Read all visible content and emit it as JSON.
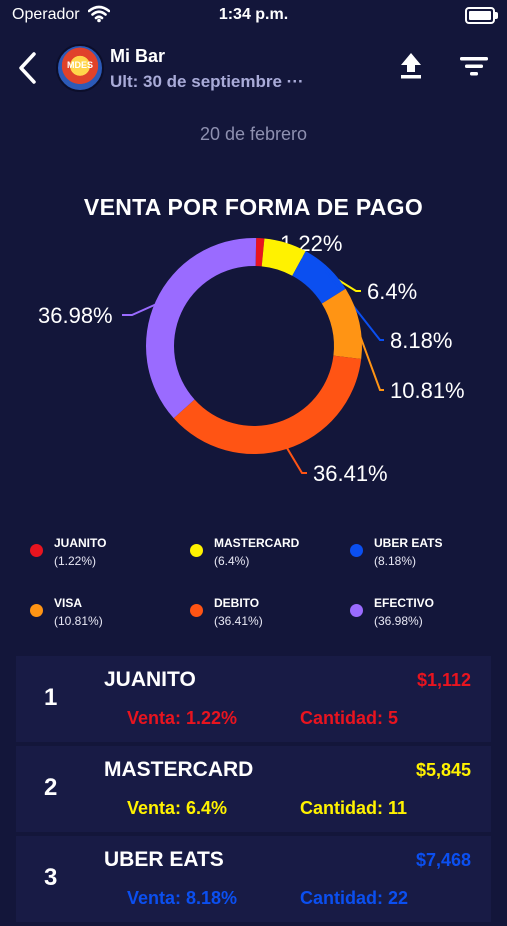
{
  "status_bar": {
    "carrier": "Operador",
    "time": "1:34 p.m."
  },
  "header": {
    "title": "Mi Bar",
    "subtitle": "Ult: 30 de septiembre ···",
    "avatar_text": "MDES"
  },
  "date_label": "20 de febrero",
  "chart_data": {
    "type": "pie",
    "title": "VENTA POR FORMA DE PAGO",
    "categories": [
      "JUANITO",
      "MASTERCARD",
      "UBER EATS",
      "VISA",
      "DEBITO",
      "EFECTIVO"
    ],
    "values": [
      1.22,
      6.4,
      8.18,
      10.81,
      36.41,
      36.98
    ],
    "labels": [
      "1.22%",
      "6.4%",
      "8.18%",
      "10.81%",
      "36.41%",
      "36.98%"
    ],
    "colors": [
      "#e8141f",
      "#fff200",
      "#0b4ff0",
      "#ff9414",
      "#ff5414",
      "#9a6bff"
    ],
    "donut": true,
    "legend_position": "bottom"
  },
  "legend": [
    {
      "name": "JUANITO",
      "pct": "(1.22%)",
      "color": "#e8141f"
    },
    {
      "name": "MASTERCARD",
      "pct": "(6.4%)",
      "color": "#fff200"
    },
    {
      "name": "UBER EATS",
      "pct": "(8.18%)",
      "color": "#0b4ff0"
    },
    {
      "name": "VISA",
      "pct": "(10.81%)",
      "color": "#ff9414"
    },
    {
      "name": "DEBITO",
      "pct": "(36.41%)",
      "color": "#ff5414"
    },
    {
      "name": "EFECTIVO",
      "pct": "(36.98%)",
      "color": "#9a6bff"
    }
  ],
  "rows": [
    {
      "rank": "1",
      "name": "JUANITO",
      "amount": "$1,112",
      "venta": "Venta:  1.22%",
      "cantidad": "Cantidad: 5",
      "color": "#e8141f"
    },
    {
      "rank": "2",
      "name": "MASTERCARD",
      "amount": "$5,845",
      "venta": "Venta:  6.4%",
      "cantidad": "Cantidad: 11",
      "color": "#fff200"
    },
    {
      "rank": "3",
      "name": "UBER EATS",
      "amount": "$7,468",
      "venta": "Venta:  8.18%",
      "cantidad": "Cantidad: 22",
      "color": "#0b4ff0"
    }
  ]
}
